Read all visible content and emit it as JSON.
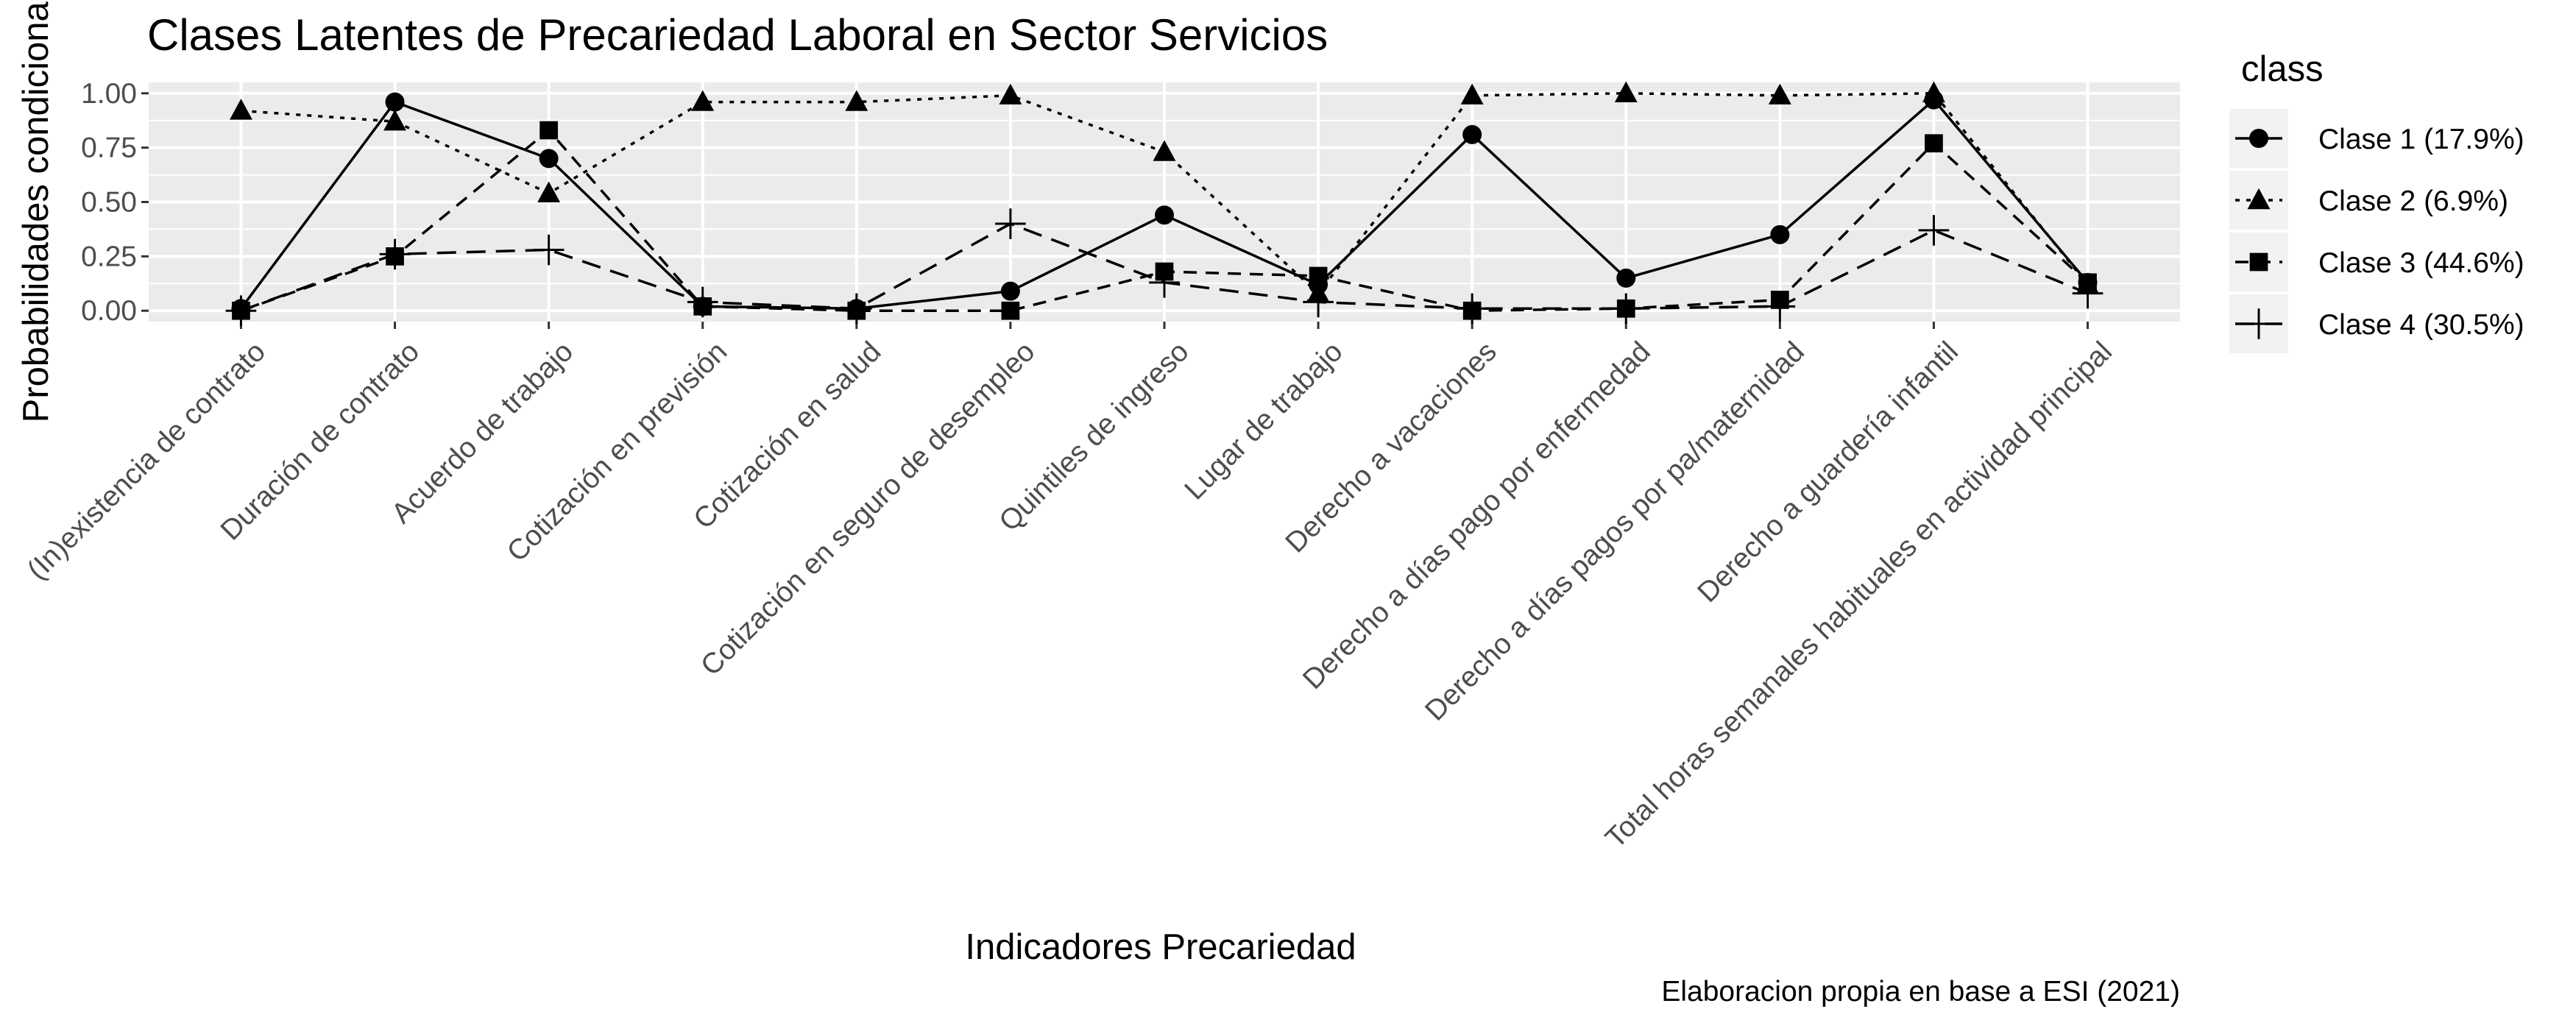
{
  "chart_data": {
    "type": "line",
    "title": "Clases Latentes de Precariedad Laboral en Sector Servicios",
    "xlabel": "Indicadores Precariedad",
    "ylabel": "Probabilidades condicionales",
    "caption": "Elaboracion propia en base a ESI (2021)",
    "ylim": [
      -0.05,
      1.05
    ],
    "yticks": [
      0,
      0.25,
      0.5,
      0.75,
      1
    ],
    "ytick_labels": [
      "0.00",
      "0.25",
      "0.50",
      "0.75",
      "1.00"
    ],
    "grid": true,
    "legend": {
      "title": "class",
      "position": "right"
    },
    "categories": [
      "(In)existencia de contrato",
      "Duración de contrato",
      "Acuerdo de trabajo",
      "Cotización en previsión",
      "Cotización en salud",
      "Cotización en seguro de desempleo",
      "Quintiles de ingreso",
      "Lugar de trabajo",
      "Derecho a vacaciones",
      "Derecho a días pago por enfermedad",
      "Derecho a días pagos por pa/maternidad",
      "Derecho a guardería infantil",
      "Total horas semanales habituales en actividad principal"
    ],
    "series": [
      {
        "name": "Clase 1 (17.9%)",
        "marker": "circle",
        "dash": "solid",
        "values": [
          0.01,
          0.96,
          0.7,
          0.02,
          0.01,
          0.09,
          0.44,
          0.12,
          0.81,
          0.15,
          0.35,
          0.97,
          0.13
        ]
      },
      {
        "name": "Clase 2 (6.9%)",
        "marker": "triangle",
        "dash": "dotted",
        "values": [
          0.92,
          0.87,
          0.54,
          0.96,
          0.96,
          0.99,
          0.73,
          0.08,
          0.99,
          1.0,
          0.99,
          1.0,
          0.12
        ]
      },
      {
        "name": "Clase 3 (44.6%)",
        "marker": "square",
        "dash": "dashed",
        "values": [
          0.0,
          0.25,
          0.83,
          0.02,
          0.0,
          0.0,
          0.18,
          0.16,
          0.0,
          0.01,
          0.05,
          0.77,
          0.13
        ]
      },
      {
        "name": "Clase 4 (30.5%)",
        "marker": "plus",
        "dash": "longdash",
        "values": [
          0.0,
          0.26,
          0.28,
          0.04,
          0.01,
          0.4,
          0.13,
          0.04,
          0.01,
          0.01,
          0.02,
          0.37,
          0.08
        ]
      }
    ]
  }
}
